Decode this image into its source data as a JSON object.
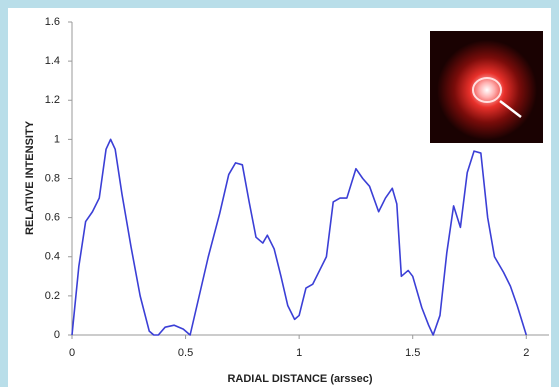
{
  "chart_data": {
    "type": "line",
    "xlabel": "RADIAL DISTANCE (arssec)",
    "ylabel": "RELATIVE INTENSITY",
    "x": [
      0,
      0.03,
      0.06,
      0.09,
      0.12,
      0.15,
      0.17,
      0.19,
      0.22,
      0.26,
      0.3,
      0.34,
      0.36,
      0.38,
      0.41,
      0.45,
      0.49,
      0.52,
      0.56,
      0.6,
      0.65,
      0.69,
      0.72,
      0.75,
      0.78,
      0.81,
      0.84,
      0.86,
      0.89,
      0.92,
      0.95,
      0.98,
      1.0,
      1.03,
      1.06,
      1.09,
      1.12,
      1.15,
      1.18,
      1.21,
      1.25,
      1.28,
      1.31,
      1.35,
      1.38,
      1.41,
      1.43,
      1.45,
      1.48,
      1.5,
      1.54,
      1.57,
      1.59,
      1.62,
      1.65,
      1.68,
      1.71,
      1.74,
      1.77,
      1.8,
      1.83,
      1.86,
      1.9,
      1.93,
      1.96,
      2.0
    ],
    "values": [
      0,
      0.35,
      0.58,
      0.63,
      0.7,
      0.95,
      1.0,
      0.95,
      0.72,
      0.45,
      0.2,
      0.02,
      0,
      0,
      0.04,
      0.05,
      0.03,
      0,
      0.2,
      0.4,
      0.62,
      0.82,
      0.88,
      0.87,
      0.68,
      0.5,
      0.47,
      0.51,
      0.44,
      0.3,
      0.15,
      0.08,
      0.1,
      0.24,
      0.26,
      0.33,
      0.4,
      0.68,
      0.7,
      0.7,
      0.85,
      0.8,
      0.76,
      0.63,
      0.7,
      0.75,
      0.67,
      0.3,
      0.33,
      0.3,
      0.14,
      0.05,
      0,
      0.1,
      0.42,
      0.66,
      0.55,
      0.83,
      0.94,
      0.93,
      0.6,
      0.4,
      0.32,
      0.25,
      0.15,
      0
    ],
    "color": "#3b3fd6",
    "xlim": [
      0,
      2.1
    ],
    "xticks": [
      0,
      0.5,
      1,
      1.5,
      2
    ],
    "ylim": [
      0,
      1.6
    ],
    "yticks": [
      0,
      0.2,
      0.4,
      0.6,
      0.8,
      1,
      1.2,
      1.4,
      1.6
    ],
    "grid": false
  }
}
